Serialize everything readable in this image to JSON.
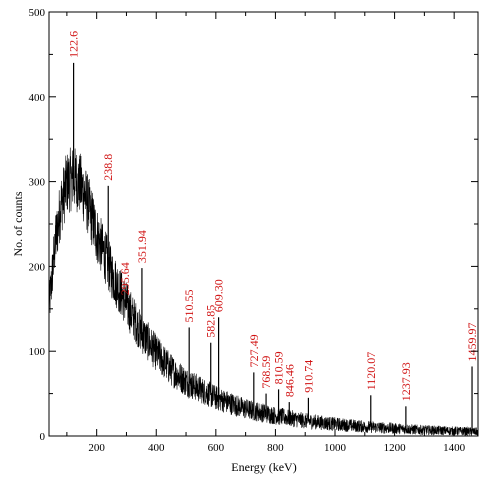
{
  "chart_data": {
    "type": "line",
    "title": "",
    "xlabel": "Energy (keV)",
    "ylabel": "No. of counts",
    "xlim": [
      40,
      1480
    ],
    "ylim": [
      0,
      500
    ],
    "grid": false,
    "x_ticks": [
      200,
      400,
      600,
      800,
      1000,
      1200,
      1400
    ],
    "x_tick_labels": [
      "200",
      "400",
      "600",
      "800",
      "1000",
      "1200",
      "1400"
    ],
    "y_ticks": [
      0,
      100,
      200,
      300,
      400,
      500
    ],
    "y_tick_labels": [
      "0",
      "100",
      "200",
      "300",
      "400",
      "500"
    ],
    "series": [
      {
        "color": "#000000",
        "background_envelope": {
          "x": [
            40,
            60,
            80,
            100,
            120,
            140,
            160,
            180,
            200,
            250,
            300,
            350,
            400,
            450,
            500,
            600,
            700,
            800,
            900,
            1000,
            1100,
            1200,
            1300,
            1400,
            1480
          ],
          "y": [
            150,
            225,
            272,
            298,
            305,
            300,
            285,
            262,
            238,
            192,
            155,
            122,
            98,
            78,
            64,
            45,
            32,
            24,
            18,
            14,
            11,
            9,
            7,
            6,
            5
          ]
        },
        "peaks": [
          {
            "x": 122.6,
            "y": 440
          },
          {
            "x": 238.8,
            "y": 295
          },
          {
            "x": 295.64,
            "y": 160
          },
          {
            "x": 351.94,
            "y": 198
          },
          {
            "x": 510.55,
            "y": 128
          },
          {
            "x": 582.85,
            "y": 110
          },
          {
            "x": 609.3,
            "y": 140
          },
          {
            "x": 727.49,
            "y": 75
          },
          {
            "x": 768.59,
            "y": 50
          },
          {
            "x": 810.59,
            "y": 55
          },
          {
            "x": 846.46,
            "y": 40
          },
          {
            "x": 910.74,
            "y": 45
          },
          {
            "x": 1120.07,
            "y": 48
          },
          {
            "x": 1237.93,
            "y": 35
          },
          {
            "x": 1459.97,
            "y": 82
          }
        ]
      }
    ],
    "annotations": [
      {
        "text": "122.6",
        "x": 122.6
      },
      {
        "text": "238.8",
        "x": 238.8
      },
      {
        "text": "295.64",
        "x": 295.64
      },
      {
        "text": "351.94",
        "x": 351.94
      },
      {
        "text": "510.55",
        "x": 510.55
      },
      {
        "text": "582.85",
        "x": 582.85
      },
      {
        "text": "609.30",
        "x": 609.3
      },
      {
        "text": "727.49",
        "x": 727.49
      },
      {
        "text": "768.59",
        "x": 768.59
      },
      {
        "text": "810.59",
        "x": 810.59
      },
      {
        "text": "846.46",
        "x": 846.46
      },
      {
        "text": "910.74",
        "x": 910.74
      },
      {
        "text": "1120.07",
        "x": 1120.07
      },
      {
        "text": "1237.93",
        "x": 1237.93
      },
      {
        "text": "1459.97",
        "x": 1459.97
      }
    ],
    "colors": {
      "series": "#000000",
      "annotation": "#d01010",
      "axis": "#000000"
    }
  }
}
